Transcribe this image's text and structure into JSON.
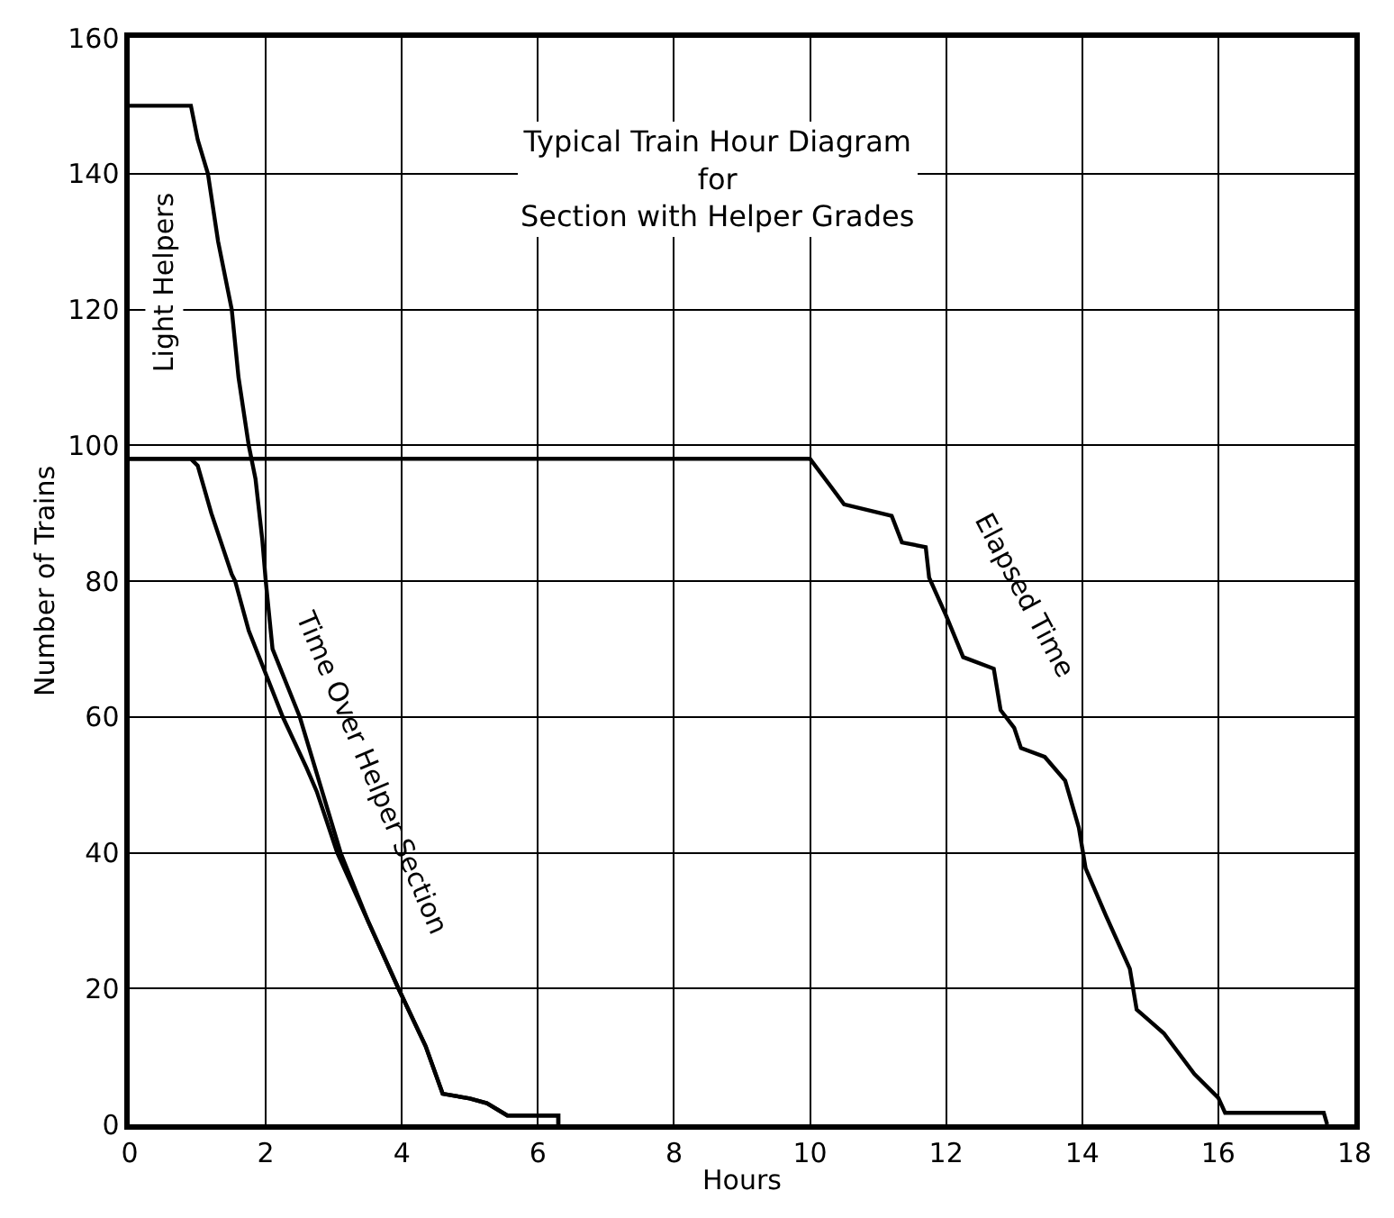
{
  "chart_data": {
    "type": "line",
    "title": "Typical Train Hour Diagram\nfor\nSection with Helper Grades",
    "xlabel": "Hours",
    "ylabel": "Number of Trains",
    "annotations": [
      "Light Helpers"
    ],
    "series": [
      {
        "color": "#000000",
        "x": [
          0,
          0.9,
          1.0,
          1.15,
          1.3,
          1.5,
          1.6,
          1.75,
          1.85,
          1.95,
          2.0,
          2.1,
          2.5,
          2.8,
          3.1,
          3.5,
          3.95,
          4.35,
          4.6,
          5.0,
          5.25,
          5.55,
          6.3,
          6.3
        ],
        "values": [
          150,
          150,
          145,
          140,
          130,
          120,
          110,
          100,
          95,
          86,
          80,
          70,
          60,
          50,
          40,
          30,
          20,
          11.5,
          4.5,
          3.8,
          3.1,
          1.3,
          1.3,
          0
        ]
      },
      {
        "name": "Time Over Helper Section",
        "color": "#000000",
        "x": [
          0,
          0.9,
          1.0,
          1.2,
          1.5,
          1.55,
          1.75,
          2.25,
          2.6,
          2.75,
          3.05,
          3.5,
          3.95,
          4.35,
          4.6,
          5.0,
          5.25,
          5.55,
          6.3,
          6.3
        ],
        "values": [
          98,
          98,
          97,
          90,
          81,
          80,
          72.7,
          60,
          52.5,
          49,
          40,
          30,
          20,
          11.5,
          4.5,
          3.8,
          3.1,
          1.3,
          1.3,
          0
        ]
      },
      {
        "name": "Elapsed Time",
        "color": "#000000",
        "x": [
          0,
          10.0,
          10.3,
          10.5,
          11.2,
          11.35,
          11.7,
          11.75,
          12.0,
          12.25,
          12.7,
          12.8,
          13.0,
          13.1,
          13.45,
          13.75,
          13.95,
          14.05,
          14.35,
          14.7,
          14.8,
          15.2,
          15.65,
          16.0,
          16.1,
          17.55,
          17.6
        ],
        "values": [
          98,
          98,
          94,
          91.3,
          89.6,
          85.7,
          85,
          80.5,
          74.9,
          68.8,
          67.1,
          61,
          58.4,
          55.4,
          54.1,
          50.6,
          43.7,
          37.7,
          30.7,
          22.9,
          16.9,
          13.4,
          7.4,
          3.9,
          1.7,
          1.7,
          0
        ]
      }
    ],
    "xlim": [
      0,
      18
    ],
    "xticks": [
      0,
      2,
      4,
      6,
      8,
      10,
      12,
      14,
      16,
      18
    ],
    "ylim": [
      0,
      160
    ],
    "yticks": [
      0,
      20,
      40,
      60,
      80,
      100,
      120,
      140,
      160
    ],
    "grid": true,
    "legend": false,
    "marker": "none",
    "line_style": "solid"
  }
}
